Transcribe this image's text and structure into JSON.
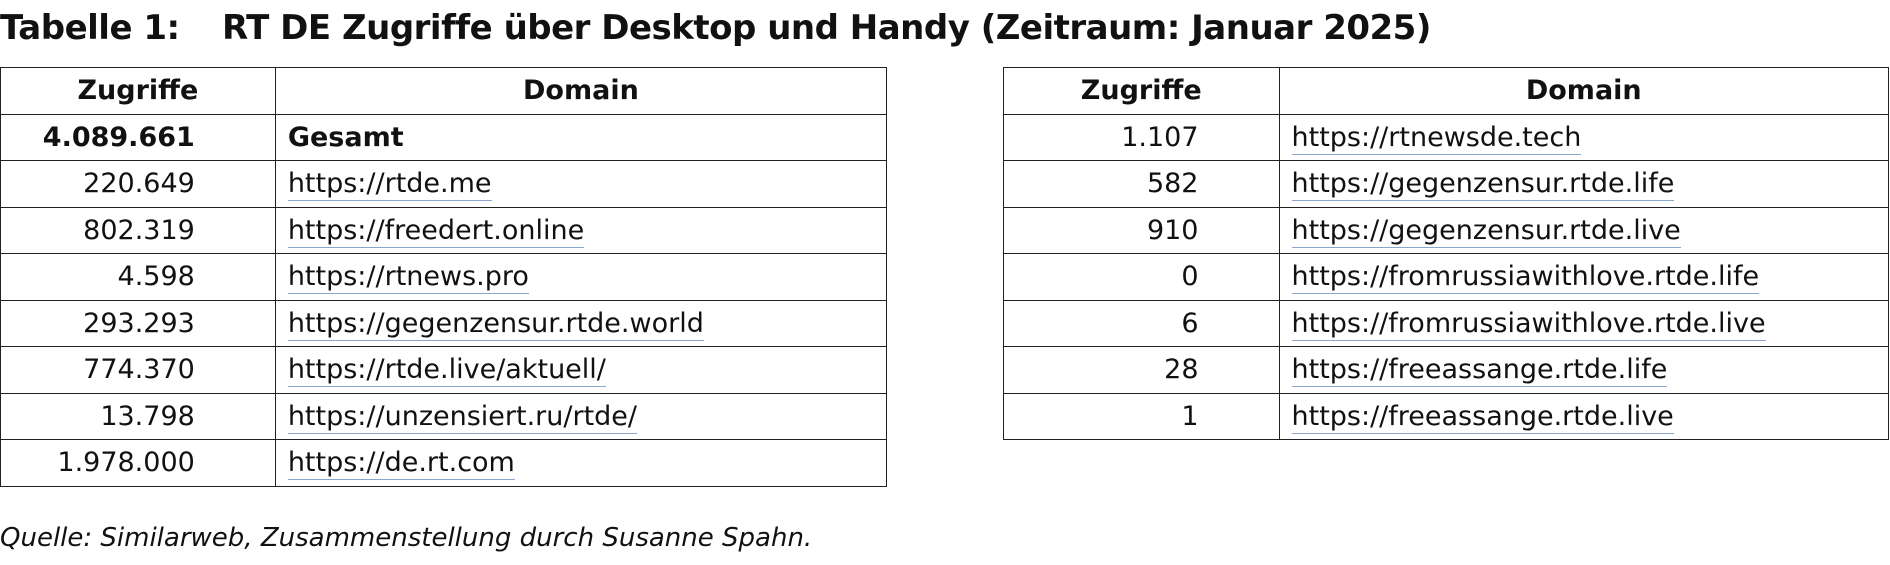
{
  "title": {
    "label": "Tabelle 1:",
    "text": "RT DE Zugriffe über Desktop und Handy (Zeitraum: Januar 2025)"
  },
  "left_table": {
    "headers": [
      "Zugriffe",
      "Domain"
    ],
    "total": {
      "zugriffe": "4.089.661",
      "domain": "Gesamt"
    },
    "rows": [
      {
        "zugriffe": "220.649",
        "domain": "https://rtde.me"
      },
      {
        "zugriffe": "802.319",
        "domain": "https://freedert.online"
      },
      {
        "zugriffe": "4.598",
        "domain": "https://rtnews.pro"
      },
      {
        "zugriffe": "293.293",
        "domain": "https://gegenzensur.rtde.world"
      },
      {
        "zugriffe": "774.370",
        "domain": "https://rtde.live/aktuell/"
      },
      {
        "zugriffe": "13.798",
        "domain": "https://unzensiert.ru/rtde/"
      },
      {
        "zugriffe": "1.978.000",
        "domain": "https://de.rt.com"
      }
    ]
  },
  "right_table": {
    "headers": [
      "Zugriffe",
      "Domain"
    ],
    "rows": [
      {
        "zugriffe": "1.107",
        "domain": "https://rtnewsde.tech"
      },
      {
        "zugriffe": "582",
        "domain": "https://gegenzensur.rtde.life"
      },
      {
        "zugriffe": "910",
        "domain": "https://gegenzensur.rtde.live"
      },
      {
        "zugriffe": "0",
        "domain": "https://fromrussiawithlove.rtde.life"
      },
      {
        "zugriffe": "6",
        "domain": "https://fromrussiawithlove.rtde.live"
      },
      {
        "zugriffe": "28",
        "domain": "https://freeassange.rtde.life"
      },
      {
        "zugriffe": "1",
        "domain": "https://freeassange.rtde.live"
      }
    ]
  },
  "source": "Quelle: Similarweb, Zusammenstellung durch Susanne Spahn.",
  "colors": {
    "text": "#111111",
    "link_underline": "#8aa6c8",
    "border": "#222222"
  }
}
